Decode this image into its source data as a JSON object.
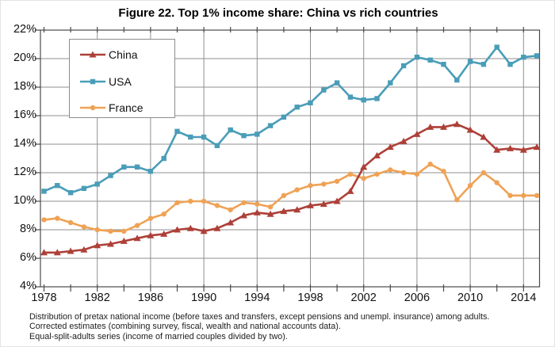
{
  "figure": {
    "footnotes": [
      "Distribution of pretax national income (before taxes and transfers, except pensions and unempl. insurance) among adults.",
      "Corrected estimates (combining survey, fiscal, wealth and national accounts data).",
      "Equal-split-adults series (income of married couples divided by two)."
    ]
  },
  "chart_data": {
    "type": "line",
    "title": "Figure 22. Top 1% income share: China vs rich countries",
    "x": [
      1978,
      1979,
      1980,
      1981,
      1982,
      1983,
      1984,
      1985,
      1986,
      1987,
      1988,
      1989,
      1990,
      1991,
      1992,
      1993,
      1994,
      1995,
      1996,
      1997,
      1998,
      1999,
      2000,
      2001,
      2002,
      2003,
      2004,
      2005,
      2006,
      2007,
      2008,
      2009,
      2010,
      2011,
      2012,
      2013,
      2014,
      2015
    ],
    "series": [
      {
        "name": "China",
        "color": "#ad4038",
        "marker": "triangle",
        "values": [
          6.4,
          6.4,
          6.5,
          6.6,
          6.9,
          7.0,
          7.2,
          7.4,
          7.6,
          7.7,
          8.0,
          8.1,
          7.9,
          8.1,
          8.5,
          9.0,
          9.2,
          9.1,
          9.3,
          9.4,
          9.7,
          9.8,
          10.0,
          10.7,
          12.4,
          13.2,
          13.8,
          14.2,
          14.7,
          15.2,
          15.2,
          15.4,
          15.0,
          14.5,
          13.6,
          13.7,
          13.6,
          13.8
        ]
      },
      {
        "name": "USA",
        "color": "#4a9db8",
        "marker": "square",
        "values": [
          10.7,
          11.1,
          10.6,
          10.9,
          11.2,
          11.8,
          12.4,
          12.4,
          12.1,
          13.0,
          14.9,
          14.5,
          14.5,
          13.9,
          15.0,
          14.6,
          14.7,
          15.3,
          15.9,
          16.6,
          16.9,
          17.8,
          18.3,
          17.3,
          17.1,
          17.2,
          18.3,
          19.5,
          20.1,
          19.9,
          19.6,
          18.5,
          19.8,
          19.6,
          20.8,
          19.6,
          20.1,
          20.2
        ]
      },
      {
        "name": "France",
        "color": "#efa255",
        "marker": "circle",
        "values": [
          8.7,
          8.8,
          8.5,
          8.2,
          8.0,
          7.9,
          7.9,
          8.3,
          8.8,
          9.1,
          9.9,
          10.0,
          10.0,
          9.7,
          9.4,
          9.9,
          9.8,
          9.6,
          10.4,
          10.8,
          11.1,
          11.2,
          11.4,
          11.9,
          11.6,
          11.9,
          12.2,
          12.0,
          11.9,
          12.6,
          12.1,
          10.1,
          11.1,
          12.0,
          11.3,
          10.4,
          10.4,
          10.4
        ]
      }
    ],
    "xlabel": "",
    "ylabel": "",
    "unit": "%",
    "ylim": [
      4,
      22
    ],
    "ytick_step": 2,
    "ytick_labels": [
      "4%",
      "6%",
      "8%",
      "10%",
      "12%",
      "14%",
      "16%",
      "18%",
      "20%",
      "22%"
    ],
    "xtick_years": [
      1978,
      1982,
      1986,
      1990,
      1994,
      1998,
      2002,
      2006,
      2010,
      2014
    ],
    "xtick_labels": [
      "1978",
      "1982",
      "1986",
      "1990",
      "1994",
      "1998",
      "2002",
      "2006",
      "2010",
      "2014"
    ],
    "minor_xtick_step": 2,
    "grid": true,
    "grid_color": "#8f8f8f",
    "axis_color": "#4a4a4a",
    "legend_position": "upper-left"
  }
}
